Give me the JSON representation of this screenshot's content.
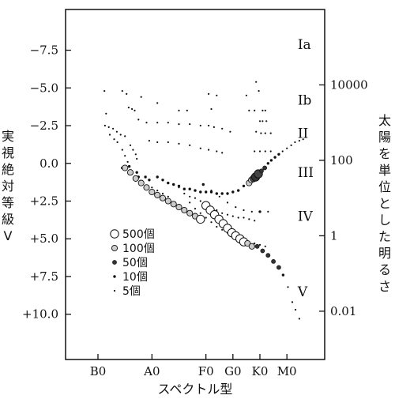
{
  "chart_data": {
    "type": "scatter",
    "title": "",
    "xlabel": "スペクトル型",
    "ylabel_left": "実視絶対等級 V",
    "ylabel_left_lines": [
      "実",
      "視",
      "絶",
      "対",
      "等",
      "級",
      "V"
    ],
    "ylabel_right": "太陽を単位とした明るさ",
    "ylabel_right_lines": [
      "太",
      "陽",
      "を",
      "単",
      "位",
      "と",
      "し",
      "た",
      "明",
      "る",
      "さ"
    ],
    "x_ticks": [
      {
        "label": "B0",
        "value": 0
      },
      {
        "label": "A0",
        "value": 10
      },
      {
        "label": "F0",
        "value": 20
      },
      {
        "label": "G0",
        "value": 25
      },
      {
        "label": "K0",
        "value": 30
      },
      {
        "label": "M0",
        "value": 35
      }
    ],
    "xlim": [
      -6,
      42
    ],
    "ylim": [
      13.0,
      -10.2
    ],
    "y_ticks_left": [
      {
        "label": "−7.5",
        "value": -7.5
      },
      {
        "label": "−5.0",
        "value": -5.0
      },
      {
        "label": "−2.5",
        "value": -2.5
      },
      {
        "label": "0.0",
        "value": 0.0
      },
      {
        "label": "+2.5",
        "value": 2.5
      },
      {
        "label": "+5.0",
        "value": 5.0
      },
      {
        "label": "+7.5",
        "value": 7.5
      },
      {
        "label": "+10.0",
        "value": 10.0
      }
    ],
    "y_ticks_right": [
      {
        "label": "10000",
        "mag": -5.2
      },
      {
        "label": "100",
        "mag": -0.2
      },
      {
        "label": "1",
        "mag": 4.8
      },
      {
        "label": "0.01",
        "mag": 9.8
      }
    ],
    "luminosity_classes": [
      {
        "label": "Ia",
        "x": 37,
        "mag": -7.9
      },
      {
        "label": "Ib",
        "x": 37,
        "mag": -4.2
      },
      {
        "label": "II",
        "x": 37,
        "mag": -2.0
      },
      {
        "label": "III",
        "x": 37,
        "mag": 0.6
      },
      {
        "label": "IV",
        "x": 37,
        "mag": 3.5
      },
      {
        "label": "V",
        "x": 37,
        "mag": 8.5
      }
    ],
    "legend": {
      "position": "lower-left",
      "entries": [
        {
          "label": "500個",
          "size": 5,
          "fill": "#ffffff"
        },
        {
          "label": "100個",
          "size": 4,
          "fill": "#cccccc"
        },
        {
          "label": "50個",
          "size": 3,
          "fill": "#333333"
        },
        {
          "label": "10個",
          "size": 2,
          "fill": "#111111"
        },
        {
          "label": "5個",
          "size": 1,
          "fill": "#111111"
        }
      ]
    },
    "series": [
      {
        "points": [
          [
            1.2,
            -4.8,
            1
          ],
          [
            4.5,
            -4.8,
            1
          ],
          [
            5.3,
            -4.6,
            1
          ],
          [
            20.5,
            -4.6,
            1
          ],
          [
            22.0,
            -4.5,
            1
          ],
          [
            27.5,
            -4.5,
            1
          ],
          [
            29.3,
            -5.4,
            1
          ],
          [
            29.8,
            -4.8,
            1
          ],
          [
            8.0,
            -4.4,
            1
          ],
          [
            11.0,
            -4.0,
            1
          ],
          [
            5.7,
            -3.7,
            1
          ],
          [
            6.3,
            -3.6,
            1
          ],
          [
            6.8,
            -3.5,
            1
          ],
          [
            15.0,
            -3.5,
            1
          ],
          [
            16.5,
            -3.5,
            1
          ],
          [
            21.0,
            -3.6,
            1
          ],
          [
            28.0,
            -3.5,
            1
          ],
          [
            29.0,
            -3.5,
            1
          ],
          [
            30.5,
            -3.5,
            1
          ],
          [
            31.0,
            -3.5,
            1
          ],
          [
            1.5,
            -3.3,
            1
          ],
          [
            7.5,
            -2.9,
            1
          ],
          [
            9.0,
            -2.7,
            1
          ],
          [
            11.0,
            -2.7,
            1
          ],
          [
            13.0,
            -2.7,
            1
          ],
          [
            15.0,
            -2.6,
            1
          ],
          [
            17.0,
            -2.6,
            1
          ],
          [
            19.0,
            -2.5,
            1
          ],
          [
            20.5,
            -2.5,
            1
          ],
          [
            21.5,
            -2.4,
            1
          ],
          [
            23.0,
            -2.3,
            1
          ],
          [
            24.5,
            -2.1,
            1
          ],
          [
            30.0,
            -2.8,
            1
          ],
          [
            30.5,
            -2.8,
            1
          ],
          [
            31.2,
            -2.8,
            1
          ],
          [
            29.3,
            -2.1,
            1
          ],
          [
            30.2,
            -2.0,
            1
          ],
          [
            31.0,
            -2.0,
            1
          ],
          [
            32.0,
            -2.0,
            1
          ],
          [
            1.3,
            -2.5,
            1
          ],
          [
            2.0,
            -2.4,
            1
          ],
          [
            2.8,
            -2.3,
            1
          ],
          [
            3.5,
            -2.1,
            1
          ],
          [
            4.2,
            -1.9,
            1
          ],
          [
            5.0,
            -1.8,
            1
          ],
          [
            2.2,
            -1.9,
            1
          ],
          [
            3.0,
            -1.6,
            1
          ],
          [
            3.6,
            -1.4,
            1
          ],
          [
            9.5,
            -1.5,
            1
          ],
          [
            11.0,
            -1.4,
            1
          ],
          [
            13.0,
            -1.4,
            1
          ],
          [
            15.0,
            -1.3,
            1
          ],
          [
            17.0,
            -1.2,
            1
          ],
          [
            19.0,
            -1.0,
            1
          ],
          [
            20.5,
            -0.9,
            1
          ],
          [
            22.0,
            -0.8,
            1
          ],
          [
            23.0,
            -0.7,
            1
          ],
          [
            29.0,
            -0.8,
            1
          ],
          [
            30.0,
            -0.8,
            1
          ],
          [
            31.0,
            -0.8,
            1
          ],
          [
            32.0,
            -0.8,
            1
          ],
          [
            6.0,
            -1.2,
            1
          ],
          [
            6.5,
            -0.9,
            1
          ],
          [
            7.0,
            -0.6,
            1
          ],
          [
            7.2,
            -0.3,
            1
          ],
          [
            4.5,
            -0.9,
            1
          ],
          [
            5.0,
            -0.5,
            1
          ],
          [
            5.5,
            -0.1,
            1
          ],
          [
            4.5,
            0.3,
            2
          ],
          [
            5.8,
            0.2,
            2
          ],
          [
            6.0,
            0.5,
            2
          ],
          [
            7.2,
            0.6,
            2
          ],
          [
            7.5,
            0.9,
            2
          ],
          [
            8.8,
            0.9,
            2
          ],
          [
            9.5,
            1.1,
            2
          ],
          [
            11.0,
            0.9,
            2
          ],
          [
            12.0,
            1.1,
            2
          ],
          [
            13.0,
            1.3,
            2
          ],
          [
            14.0,
            1.4,
            2
          ],
          [
            15.0,
            1.5,
            2
          ],
          [
            16.0,
            1.7,
            2
          ],
          [
            17.0,
            1.7,
            2
          ],
          [
            18.0,
            1.8,
            2
          ],
          [
            19.0,
            1.9,
            2
          ],
          [
            20.0,
            1.9,
            2
          ],
          [
            21.0,
            1.9,
            2
          ],
          [
            22.0,
            2.0,
            2
          ],
          [
            23.0,
            2.0,
            2
          ],
          [
            24.0,
            2.0,
            2
          ],
          [
            25.0,
            1.9,
            2
          ],
          [
            26.0,
            1.8,
            2
          ],
          [
            27.0,
            1.5,
            2
          ],
          [
            28.0,
            1.3,
            4
          ],
          [
            28.4,
            1.1,
            4
          ],
          [
            28.8,
            1.0,
            4
          ],
          [
            29.2,
            0.9,
            5
          ],
          [
            29.7,
            0.7,
            5
          ],
          [
            30.3,
            0.5,
            3
          ],
          [
            30.9,
            0.3,
            3
          ],
          [
            31.5,
            0.0,
            2
          ],
          [
            32.1,
            -0.2,
            2
          ],
          [
            32.8,
            -0.4,
            2
          ],
          [
            33.5,
            -0.6,
            2
          ],
          [
            34.2,
            -0.8,
            1
          ],
          [
            35.0,
            -1.0,
            1
          ],
          [
            35.8,
            -1.2,
            1
          ],
          [
            36.5,
            -1.4,
            1
          ],
          [
            37.3,
            -1.5,
            1
          ],
          [
            38.0,
            -1.6,
            1
          ],
          [
            14.0,
            1.4,
            1
          ],
          [
            15.0,
            1.6,
            1
          ],
          [
            16.0,
            2.0,
            1
          ],
          [
            17.0,
            2.2,
            1
          ],
          [
            18.0,
            2.3,
            1
          ],
          [
            19.0,
            2.5,
            1
          ],
          [
            20.0,
            2.7,
            1
          ],
          [
            21.0,
            2.9,
            1
          ],
          [
            22.0,
            3.1,
            1
          ],
          [
            23.0,
            3.3,
            1
          ],
          [
            24.0,
            3.4,
            1
          ],
          [
            25.0,
            3.5,
            1
          ],
          [
            26.0,
            3.6,
            1
          ],
          [
            27.0,
            3.6,
            1
          ],
          [
            28.0,
            3.7,
            1
          ],
          [
            29.0,
            3.8,
            1
          ],
          [
            19.5,
            1.4,
            2
          ],
          [
            21.0,
            1.8,
            1
          ],
          [
            22.5,
            2.2,
            1
          ],
          [
            24.0,
            2.6,
            1
          ],
          [
            25.5,
            2.9,
            1
          ],
          [
            27.0,
            3.1,
            1
          ],
          [
            28.5,
            3.2,
            1
          ],
          [
            30.0,
            3.2,
            2
          ],
          [
            31.5,
            3.2,
            1
          ],
          [
            17.0,
            2.6,
            1
          ],
          [
            18.0,
            3.0,
            1
          ],
          [
            19.0,
            3.3,
            1
          ],
          [
            20.0,
            3.6,
            1
          ],
          [
            21.0,
            3.9,
            1
          ],
          [
            22.0,
            4.2,
            1
          ],
          [
            23.0,
            4.4,
            1
          ],
          [
            24.0,
            4.6,
            1
          ],
          [
            25.0,
            4.8,
            1
          ],
          [
            26.0,
            4.9,
            1
          ],
          [
            27.0,
            5.0,
            1
          ],
          [
            28.0,
            5.2,
            1
          ],
          [
            29.0,
            5.3,
            1
          ],
          [
            30.0,
            5.4,
            1
          ],
          [
            31.0,
            5.5,
            1
          ],
          [
            5.0,
            0.3,
            4
          ],
          [
            6.0,
            0.6,
            4
          ],
          [
            7.0,
            1.0,
            4
          ],
          [
            8.0,
            1.3,
            4
          ],
          [
            9.0,
            1.6,
            4
          ],
          [
            10.0,
            1.9,
            4
          ],
          [
            11.0,
            2.1,
            4
          ],
          [
            12.0,
            2.3,
            4
          ],
          [
            13.0,
            2.5,
            4
          ],
          [
            14.0,
            2.7,
            4
          ],
          [
            15.0,
            2.9,
            4
          ],
          [
            16.0,
            3.1,
            4
          ],
          [
            17.0,
            3.3,
            4
          ],
          [
            18.0,
            3.5,
            4
          ],
          [
            19.0,
            3.7,
            5
          ],
          [
            20.0,
            2.8,
            5
          ],
          [
            20.8,
            3.1,
            5
          ],
          [
            21.6,
            3.4,
            5
          ],
          [
            22.4,
            3.7,
            5
          ],
          [
            23.2,
            4.0,
            5
          ],
          [
            24.0,
            4.3,
            5
          ],
          [
            24.8,
            4.6,
            5
          ],
          [
            25.5,
            4.8,
            5
          ],
          [
            26.3,
            5.0,
            5
          ],
          [
            27.0,
            5.2,
            5
          ],
          [
            27.7,
            5.3,
            4
          ],
          [
            28.5,
            5.5,
            4
          ],
          [
            10.0,
            1.6,
            1
          ],
          [
            11.0,
            1.8,
            1
          ],
          [
            12.0,
            2.0,
            1
          ],
          [
            13.0,
            2.2,
            1
          ],
          [
            29.5,
            5.5,
            3
          ],
          [
            30.5,
            5.8,
            3
          ],
          [
            31.5,
            6.1,
            3
          ],
          [
            32.5,
            6.5,
            3
          ],
          [
            33.5,
            6.9,
            3
          ],
          [
            34.3,
            7.4,
            2
          ],
          [
            35.2,
            8.2,
            1
          ],
          [
            36.0,
            9.2,
            1
          ],
          [
            36.6,
            9.7,
            1
          ],
          [
            37.3,
            10.3,
            1
          ]
        ]
      }
    ]
  }
}
